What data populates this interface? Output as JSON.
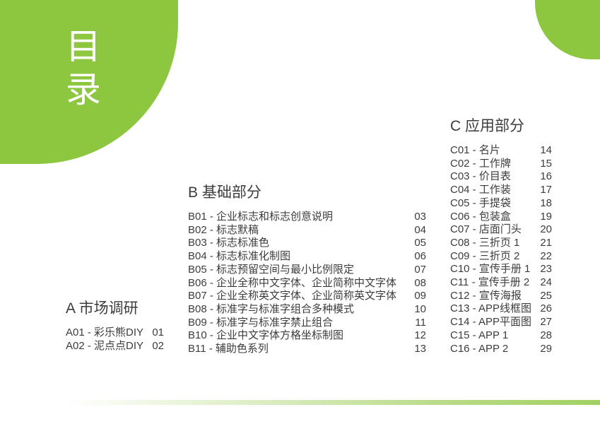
{
  "theme": {
    "accent_green": "#8dc63f",
    "text_color": "#3c3c3c",
    "title_color": "#ffffff",
    "background": "#ffffff"
  },
  "badge": {
    "title": "目录"
  },
  "sections": [
    {
      "heading": "A 市场调研",
      "items": [
        {
          "label": "A01 - 彩乐熊DIY",
          "page": "01"
        },
        {
          "label": "A02 - 泥点点DIY",
          "page": "02"
        }
      ]
    },
    {
      "heading": "B 基础部分",
      "items": [
        {
          "label": "B01 - 企业标志和标志创意说明",
          "page": "03"
        },
        {
          "label": "B02 - 标志默稿",
          "page": "04"
        },
        {
          "label": "B03 - 标志标准色",
          "page": "05"
        },
        {
          "label": "B04 - 标志标准化制图",
          "page": "06"
        },
        {
          "label": "B05 - 标志预留空间与最小比例限定",
          "page": "07"
        },
        {
          "label": "B06 - 企业全称中文字体、企业简称中文字体",
          "page": "08"
        },
        {
          "label": "B07 - 企业全称英文字体、企业简称英文字体",
          "page": "09"
        },
        {
          "label": "B08 - 标准字与标准字组合多种模式",
          "page": "10"
        },
        {
          "label": "B09 - 标准字与标准字禁止组合",
          "page": "11"
        },
        {
          "label": "B10 - 企业中文字体方格坐标制图",
          "page": "12"
        },
        {
          "label": "B11 - 辅助色系列",
          "page": "13"
        }
      ]
    },
    {
      "heading": "C 应用部分",
      "items": [
        {
          "label": "C01 - 名片",
          "page": "14"
        },
        {
          "label": "C02 - 工作牌",
          "page": "15"
        },
        {
          "label": "C03 - 价目表",
          "page": "16"
        },
        {
          "label": "C04 - 工作装",
          "page": "17"
        },
        {
          "label": "C05 - 手提袋",
          "page": "18"
        },
        {
          "label": "C06 - 包装盒",
          "page": "19"
        },
        {
          "label": "C07 - 店面门头",
          "page": "20"
        },
        {
          "label": "C08 - 三折页 1",
          "page": "21"
        },
        {
          "label": "C09 - 三折页 2",
          "page": "22"
        },
        {
          "label": "C10 - 宣传手册 1",
          "page": "23"
        },
        {
          "label": "C11 - 宣传手册 2",
          "page": "24"
        },
        {
          "label": "C12 - 宣传海报",
          "page": "25"
        },
        {
          "label": "C13 - APP线框图",
          "page": "26"
        },
        {
          "label": "C14 - APP平面图",
          "page": "27"
        },
        {
          "label": "C15 - APP 1",
          "page": "28"
        },
        {
          "label": "C16 - APP 2",
          "page": "29"
        }
      ]
    }
  ]
}
